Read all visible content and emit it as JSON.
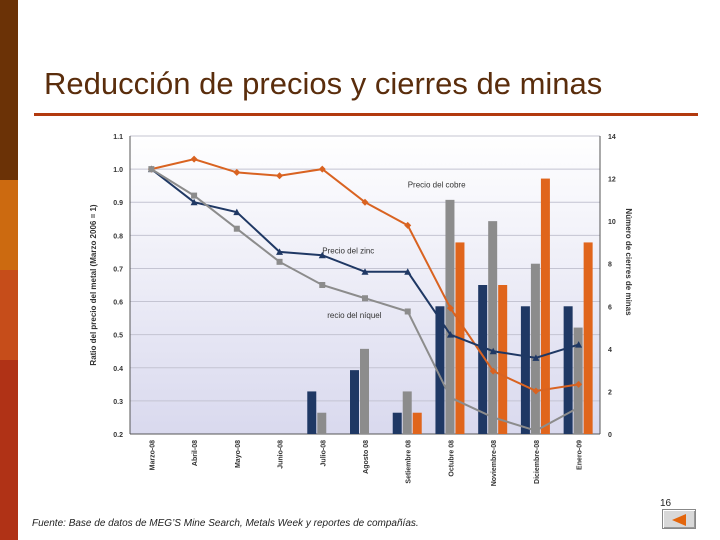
{
  "slide": {
    "title": "Reducción de precios y cierres de minas",
    "source": "Fuente: Base de datos de MEG’S Mine Search, Metals Week y reportes de compañías.",
    "page_number": "16",
    "sidebar_colors": [
      "#6b3206",
      "#cc6a10",
      "#c64d1a",
      "#b03216"
    ],
    "rule_color": "#b23a0e",
    "nav_button_icon": "back-arrow-icon"
  },
  "chart_data": {
    "type": "bar+line",
    "categories": [
      "Marzo-08",
      "Abril-08",
      "Mayo-08",
      "Junio-08",
      "Julio-08",
      "Agosto 08",
      "Setiembre 08",
      "Octubre 08",
      "Noviembre-08",
      "Diciembre-08",
      "Enero-09"
    ],
    "ylabel": "Ratio del precio del metal (Marzo 2006 = 1)",
    "y2label": "Número de cierres de minas",
    "ylim": [
      0.2,
      1.1
    ],
    "y_ticks": [
      "0.2",
      "0.3",
      "0.4",
      "0.5",
      "0.6",
      "0.7",
      "0.8",
      "0.9",
      "1.0",
      "1.1"
    ],
    "y2lim": [
      0,
      14
    ],
    "y2_ticks": [
      "0",
      "2",
      "4",
      "6",
      "8",
      "10",
      "12",
      "14"
    ],
    "grid": true,
    "bar_series": [
      {
        "color": "#1f3864",
        "values": [
          0,
          0,
          0,
          0,
          2,
          3,
          1,
          6,
          7,
          6,
          6
        ]
      },
      {
        "color": "#8c8c8c",
        "values": [
          0,
          0,
          0,
          0,
          1,
          4,
          2,
          11,
          10,
          8,
          5
        ]
      },
      {
        "color": "#e0651c",
        "values": [
          0,
          0,
          0,
          0,
          0,
          0,
          1,
          9,
          7,
          12,
          9
        ]
      }
    ],
    "line_series": [
      {
        "name": "Precio del cobre",
        "color": "#d96321",
        "marker": "diamond",
        "values": [
          1.0,
          1.03,
          0.99,
          0.98,
          1.0,
          0.9,
          0.83,
          0.58,
          0.39,
          0.33,
          0.35
        ]
      },
      {
        "name": "Precio del zinc",
        "color": "#1f3864",
        "marker": "triangle",
        "values": [
          1.0,
          0.9,
          0.87,
          0.75,
          0.74,
          0.69,
          0.69,
          0.5,
          0.45,
          0.43,
          0.47
        ]
      },
      {
        "name": "recio del níquel",
        "color": "#8c8c8c",
        "marker": "square",
        "values": [
          1.0,
          0.92,
          0.82,
          0.72,
          0.65,
          0.61,
          0.57,
          0.31,
          0.25,
          0.21,
          0.28
        ]
      }
    ]
  }
}
